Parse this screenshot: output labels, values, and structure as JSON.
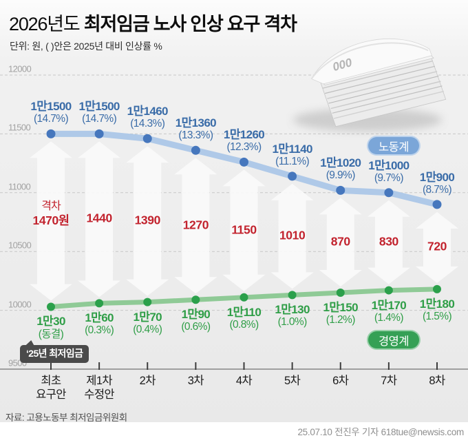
{
  "header": {
    "title_light": "2026년도",
    "title_bold": "최저임금 노사 인상 요구 격차",
    "subtitle": "단위: 원, ( )안은 2025년 대비 인상률 %"
  },
  "chart_data": {
    "type": "line",
    "title": "2026년도 최저임금 노사 인상 요구 격차",
    "unit_note": "단위: 원, ( )안은 2025년 대비 인상률 %",
    "categories": [
      "최초\n요구안",
      "제1차\n수정안",
      "2차",
      "3차",
      "4차",
      "5차",
      "6차",
      "7차",
      "8차"
    ],
    "series": [
      {
        "name": "노동계",
        "role": "labor",
        "values": [
          11500,
          11500,
          11460,
          11360,
          11260,
          11140,
          11020,
          11000,
          10900
        ],
        "labels": [
          "1만1500",
          "1만1500",
          "1만1460",
          "1만1360",
          "1만1260",
          "1만1140",
          "1만1020",
          "1만1000",
          "1만900"
        ],
        "pct": [
          "(14.7%)",
          "(14.7%)",
          "(14.3%)",
          "(13.3%)",
          "(12.3%)",
          "(11.1%)",
          "(9.9%)",
          "(9.7%)",
          "(8.7%)"
        ],
        "line_color": "#afc9e8",
        "dot_color": "#4677bd",
        "text_color": "#3a6ca8",
        "badge_color": "#7ba6d8"
      },
      {
        "name": "경영계",
        "role": "management",
        "values": [
          10030,
          10060,
          10070,
          10090,
          10110,
          10130,
          10150,
          10170,
          10180
        ],
        "labels": [
          "1만30",
          "1만60",
          "1만70",
          "1만90",
          "1만110",
          "1만130",
          "1만150",
          "1만170",
          "1만180"
        ],
        "pct": [
          "(동결)",
          "(0.3%)",
          "(0.4%)",
          "(0.6%)",
          "(0.8%)",
          "(1.0%)",
          "(1.2%)",
          "(1.4%)",
          "(1.5%)"
        ],
        "line_color": "#8fca96",
        "dot_color": "#2ba04b",
        "text_color": "#2f9e47",
        "badge_color": "#35a055"
      }
    ],
    "gap": {
      "heading": "격차",
      "labels": [
        "1470원",
        "1440",
        "1390",
        "1270",
        "1150",
        "1010",
        "870",
        "830",
        "720"
      ],
      "values": [
        1470,
        1440,
        1390,
        1270,
        1150,
        1010,
        870,
        830,
        720
      ],
      "text_color": "#c2232e"
    },
    "y_axis": {
      "ticks": [
        12000,
        11500,
        11000,
        10500,
        10000,
        9500
      ],
      "min": 9500,
      "max": 12000
    },
    "annotation": "‘25년 최저임금",
    "legend_position": "inline badges on lines",
    "grid": "horizontal dashed"
  },
  "legend": {
    "labor": "노동계",
    "management": "경영계"
  },
  "decor": {
    "banknote_text": "000"
  },
  "footer": {
    "source": "자료: 고용노동부 최저임금위원회",
    "credit": "25.07.10 전진우 기자 618tue@newsis.com"
  }
}
